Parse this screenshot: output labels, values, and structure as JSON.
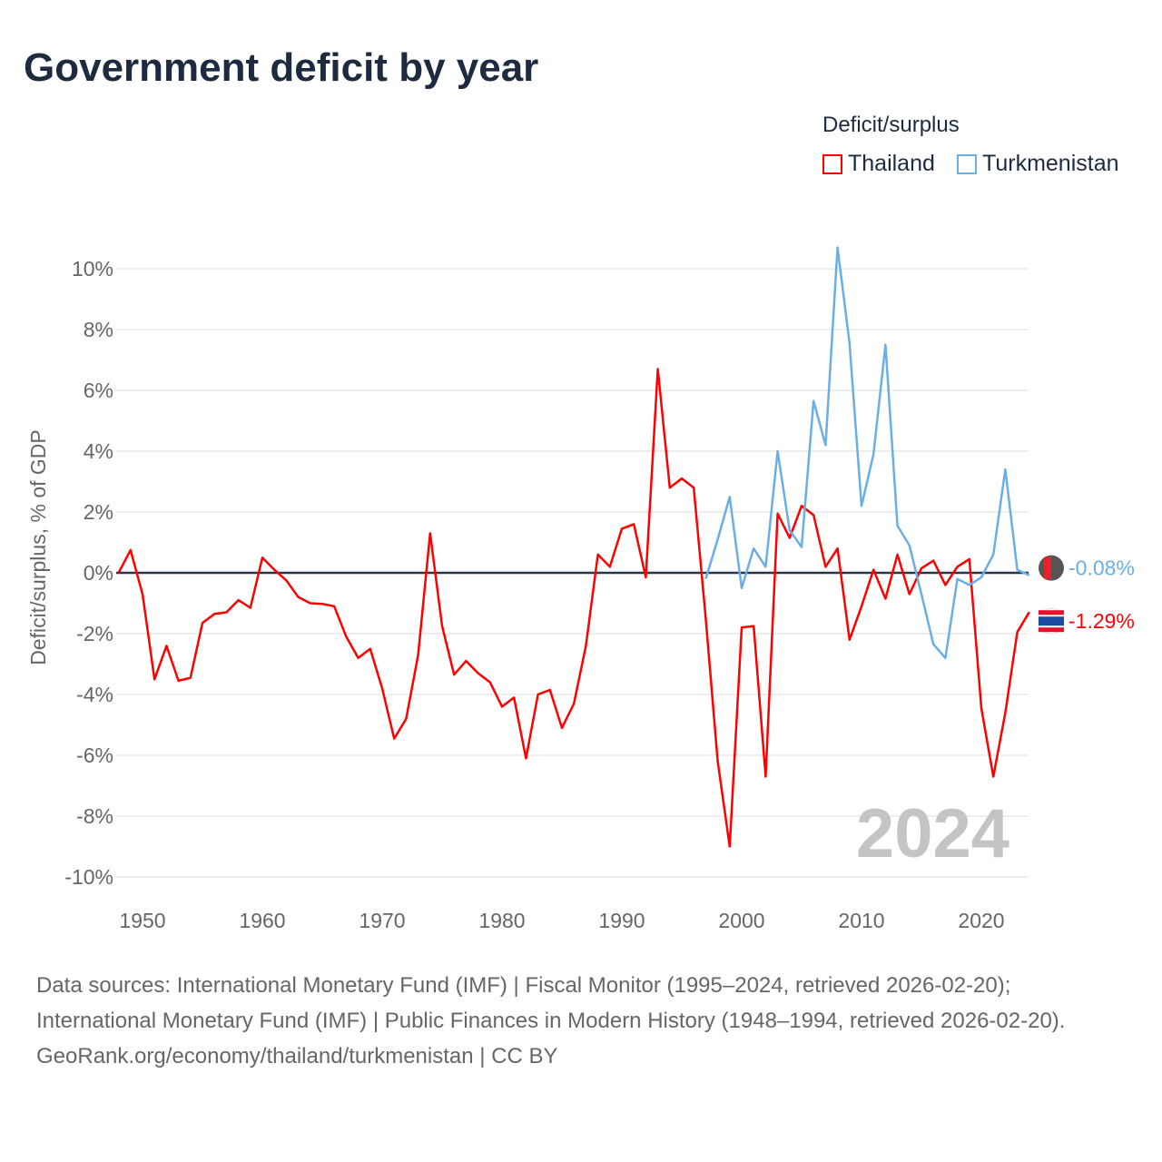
{
  "title": "Government deficit by year",
  "legend": {
    "title": "Deficit/surplus",
    "items": [
      {
        "name": "Thailand",
        "color": "#ff0000"
      },
      {
        "name": "Turkmenistan",
        "color": "#6aaee8"
      }
    ]
  },
  "footer": {
    "sources": "Data sources: International Monetary Fund (IMF) | Fiscal Monitor (1995–2024, retrieved 2026-02-20); International Monetary Fund (IMF) | Public Finances in Modern History (1948–1994, retrieved 2026-02-20).",
    "credit": "GeoRank.org/economy/thailand/turkmenistan | CC BY"
  },
  "chart_data": {
    "type": "line",
    "title": "Government deficit by year",
    "ylabel": "Deficit/surplus, % of GDP",
    "xlabel": "",
    "xlim": [
      1948,
      2024
    ],
    "ylim": [
      -10.5,
      11
    ],
    "yticks": [
      -10,
      -8,
      -6,
      -4,
      -2,
      0,
      2,
      4,
      6,
      8,
      10
    ],
    "ytick_labels": [
      "-10%",
      "-8%",
      "-6%",
      "-4%",
      "-2%",
      "0%",
      "2%",
      "4%",
      "6%",
      "8%",
      "10%"
    ],
    "xticks": [
      1950,
      1960,
      1970,
      1980,
      1990,
      2000,
      2010,
      2020
    ],
    "xtick_labels": [
      "1950",
      "1960",
      "1970",
      "1980",
      "1990",
      "2000",
      "2010",
      "2020"
    ],
    "year_watermark": "2024",
    "grid": true,
    "legend_position": "top-right",
    "series": [
      {
        "name": "Thailand",
        "color": "#ff0000",
        "end_label": "-1.29%",
        "start_year": 1948,
        "values": [
          0,
          0.75,
          -0.7,
          -3.5,
          -2.4,
          -3.55,
          -3.45,
          -1.65,
          -1.35,
          -1.3,
          -0.9,
          -1.15,
          0.5,
          0.1,
          -0.25,
          -0.8,
          -1.0,
          -1.02,
          -1.1,
          -2.1,
          -2.8,
          -2.5,
          -3.8,
          -5.45,
          -4.8,
          -2.7,
          1.3,
          -1.75,
          -3.35,
          -2.9,
          -3.3,
          -3.6,
          -4.4,
          -4.1,
          -6.1,
          -4.0,
          -3.85,
          -5.1,
          -4.3,
          -2.4,
          0.6,
          0.2,
          1.45,
          1.6,
          -0.15,
          6.7,
          2.8,
          3.1,
          2.8,
          -1.5,
          -6.2,
          -9.0,
          -1.8,
          -1.75,
          -6.7,
          1.95,
          1.15,
          2.2,
          1.9,
          0.2,
          0.8,
          -2.2,
          -1.1,
          0.1,
          -0.85,
          0.6,
          -0.7,
          0.15,
          0.4,
          -0.4,
          0.2,
          0.45,
          -4.45,
          -6.7,
          -4.6,
          -1.95,
          -1.29
        ]
      },
      {
        "name": "Turkmenistan",
        "color": "#6aaee8",
        "end_label": "-0.08%",
        "start_year": 1997,
        "values": [
          -0.2,
          1.1,
          2.5,
          -0.5,
          0.8,
          0.2,
          4.0,
          1.4,
          0.85,
          5.65,
          4.2,
          10.7,
          7.55,
          2.2,
          3.9,
          7.5,
          1.55,
          0.9,
          -0.7,
          -2.35,
          -2.8,
          -0.2,
          -0.4,
          -0.15,
          0.6,
          3.4,
          0.1,
          -0.08
        ]
      }
    ]
  }
}
